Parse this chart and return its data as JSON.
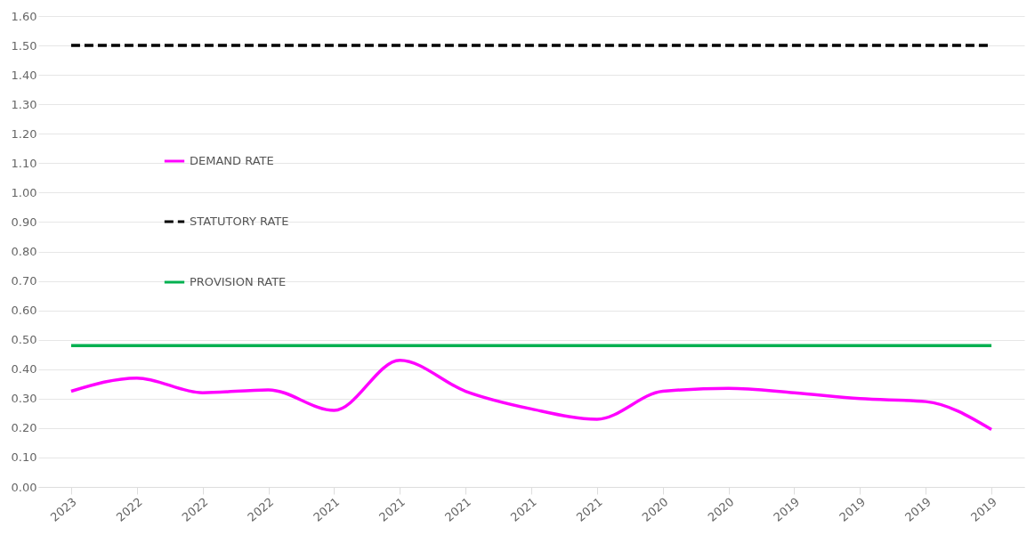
{
  "chart_data": {
    "type": "line",
    "categories": [
      "2023",
      "2022",
      "2022",
      "2022",
      "2021",
      "2021",
      "2021",
      "2021",
      "2021",
      "2020",
      "2020",
      "2019",
      "2019",
      "2019",
      "2019"
    ],
    "series": [
      {
        "name": "DEMAND RATE",
        "color": "#ff00ff",
        "line_style": "solid",
        "values": [
          0.325,
          0.37,
          0.32,
          0.33,
          0.26,
          0.43,
          0.325,
          0.265,
          0.23,
          0.325,
          0.335,
          0.32,
          0.3,
          0.29,
          0.195
        ]
      },
      {
        "name": "STATUTORY RATE",
        "color": "#000000",
        "line_style": "dashed",
        "values": [
          1.5,
          1.5,
          1.5,
          1.5,
          1.5,
          1.5,
          1.5,
          1.5,
          1.5,
          1.5,
          1.5,
          1.5,
          1.5,
          1.5,
          1.5
        ]
      },
      {
        "name": "PROVISION RATE",
        "color": "#00b050",
        "line_style": "solid",
        "values": [
          0.48,
          0.48,
          0.48,
          0.48,
          0.48,
          0.48,
          0.48,
          0.48,
          0.48,
          0.48,
          0.48,
          0.48,
          0.48,
          0.48,
          0.48
        ]
      }
    ],
    "ylim": [
      0,
      1.6
    ],
    "yticks": [
      {
        "value": 0,
        "label": "0.00"
      },
      {
        "value": 0.1,
        "label": "0.10"
      },
      {
        "value": 0.2,
        "label": "0.20"
      },
      {
        "value": 0.3,
        "label": "0.30"
      },
      {
        "value": 0.4,
        "label": "0.40"
      },
      {
        "value": 0.5,
        "label": "0.50"
      },
      {
        "value": 0.6,
        "label": "0.60"
      },
      {
        "value": 0.7,
        "label": "0.70"
      },
      {
        "value": 0.8,
        "label": "0.80"
      },
      {
        "value": 0.9,
        "label": "0.90"
      },
      {
        "value": 1.0,
        "label": "1.00"
      },
      {
        "value": 1.1,
        "label": "1.10"
      },
      {
        "value": 1.2,
        "label": "1.20"
      },
      {
        "value": 1.3,
        "label": "1.30"
      },
      {
        "value": 1.4,
        "label": "1.40"
      },
      {
        "value": 1.5,
        "label": "1.50"
      },
      {
        "value": 1.6,
        "label": "1.60"
      }
    ],
    "grid": "y",
    "legend": "left",
    "marker": "none"
  }
}
